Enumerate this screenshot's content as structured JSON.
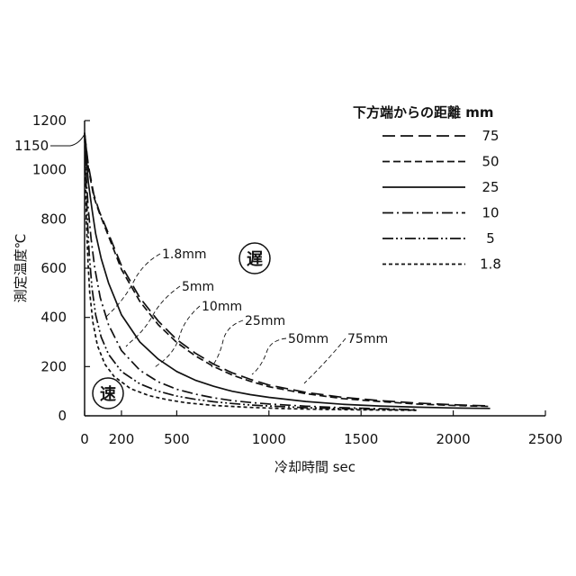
{
  "chart_data": {
    "type": "line",
    "xlabel": "冷却時間 sec",
    "ylabel": "測定温度℃",
    "xlim": [
      0,
      2500
    ],
    "ylim": [
      0,
      1200
    ],
    "x_ticks": [
      "0",
      "500",
      "1000",
      "1500",
      "2000",
      "2500"
    ],
    "x_minor_ticks": [
      "200"
    ],
    "y_ticks": [
      "0",
      "200",
      "400",
      "600",
      "800",
      "1000",
      "1200"
    ],
    "y_callout": "1150",
    "legend": {
      "title": "下方端からの距離 mm",
      "placement": "top-right",
      "entries": [
        "75",
        "50",
        "25",
        "10",
        "5",
        "1.8"
      ]
    },
    "curve_labels": [
      "1.8mm",
      "5mm",
      "10mm",
      "25mm",
      "50mm",
      "75mm"
    ],
    "badges": {
      "slow": "遅",
      "fast": "速"
    },
    "series": [
      {
        "name": "75",
        "dash": "long",
        "points": [
          [
            0,
            1150
          ],
          [
            20,
            1020
          ],
          [
            50,
            900
          ],
          [
            80,
            830
          ],
          [
            130,
            740
          ],
          [
            200,
            610
          ],
          [
            300,
            480
          ],
          [
            400,
            385
          ],
          [
            500,
            310
          ],
          [
            600,
            255
          ],
          [
            700,
            210
          ],
          [
            800,
            175
          ],
          [
            900,
            148
          ],
          [
            1000,
            125
          ],
          [
            1200,
            95
          ],
          [
            1400,
            75
          ],
          [
            1600,
            62
          ],
          [
            1800,
            52
          ],
          [
            2000,
            45
          ],
          [
            2200,
            40
          ]
        ]
      },
      {
        "name": "50",
        "dash": "medium",
        "points": [
          [
            0,
            1150
          ],
          [
            20,
            1010
          ],
          [
            50,
            890
          ],
          [
            80,
            825
          ],
          [
            130,
            730
          ],
          [
            200,
            595
          ],
          [
            300,
            465
          ],
          [
            400,
            370
          ],
          [
            500,
            298
          ],
          [
            600,
            244
          ],
          [
            700,
            200
          ],
          [
            800,
            166
          ],
          [
            900,
            140
          ],
          [
            1000,
            118
          ],
          [
            1200,
            90
          ],
          [
            1400,
            70
          ],
          [
            1600,
            58
          ],
          [
            1800,
            48
          ],
          [
            2000,
            42
          ],
          [
            2200,
            38
          ]
        ]
      },
      {
        "name": "25",
        "dash": "solid",
        "points": [
          [
            0,
            1150
          ],
          [
            20,
            950
          ],
          [
            40,
            840
          ],
          [
            60,
            740
          ],
          [
            90,
            640
          ],
          [
            130,
            540
          ],
          [
            200,
            410
          ],
          [
            300,
            300
          ],
          [
            400,
            230
          ],
          [
            500,
            180
          ],
          [
            600,
            145
          ],
          [
            700,
            120
          ],
          [
            800,
            100
          ],
          [
            900,
            86
          ],
          [
            1000,
            75
          ],
          [
            1200,
            58
          ],
          [
            1400,
            47
          ],
          [
            1600,
            40
          ],
          [
            1800,
            35
          ],
          [
            2000,
            32
          ],
          [
            2200,
            30
          ]
        ]
      },
      {
        "name": "10",
        "dash": "dash-dot",
        "points": [
          [
            0,
            1150
          ],
          [
            10,
            960
          ],
          [
            20,
            840
          ],
          [
            35,
            720
          ],
          [
            55,
            600
          ],
          [
            85,
            480
          ],
          [
            130,
            370
          ],
          [
            200,
            265
          ],
          [
            300,
            185
          ],
          [
            400,
            138
          ],
          [
            500,
            108
          ],
          [
            600,
            88
          ],
          [
            700,
            73
          ],
          [
            800,
            62
          ],
          [
            900,
            54
          ],
          [
            1000,
            48
          ],
          [
            1200,
            39
          ],
          [
            1400,
            33
          ],
          [
            1600,
            29
          ],
          [
            1800,
            25
          ]
        ]
      },
      {
        "name": "5",
        "dash": "dash-dot-dot",
        "points": [
          [
            0,
            1150
          ],
          [
            8,
            950
          ],
          [
            15,
            800
          ],
          [
            25,
            660
          ],
          [
            40,
            520
          ],
          [
            60,
            410
          ],
          [
            90,
            320
          ],
          [
            130,
            250
          ],
          [
            200,
            180
          ],
          [
            300,
            130
          ],
          [
            400,
            100
          ],
          [
            500,
            80
          ],
          [
            600,
            67
          ],
          [
            700,
            57
          ],
          [
            800,
            50
          ],
          [
            900,
            44
          ],
          [
            1000,
            40
          ],
          [
            1200,
            33
          ],
          [
            1400,
            29
          ],
          [
            1600,
            26
          ],
          [
            1800,
            23
          ]
        ]
      },
      {
        "name": "1.8",
        "dash": "short",
        "points": [
          [
            0,
            1150
          ],
          [
            5,
            950
          ],
          [
            10,
            790
          ],
          [
            18,
            630
          ],
          [
            28,
            500
          ],
          [
            45,
            380
          ],
          [
            70,
            285
          ],
          [
            110,
            210
          ],
          [
            160,
            160
          ],
          [
            250,
            110
          ],
          [
            350,
            82
          ],
          [
            450,
            65
          ],
          [
            550,
            53
          ],
          [
            700,
            42
          ],
          [
            900,
            34
          ],
          [
            1100,
            29
          ],
          [
            1300,
            26
          ],
          [
            1500,
            24
          ],
          [
            1800,
            22
          ]
        ]
      }
    ]
  }
}
